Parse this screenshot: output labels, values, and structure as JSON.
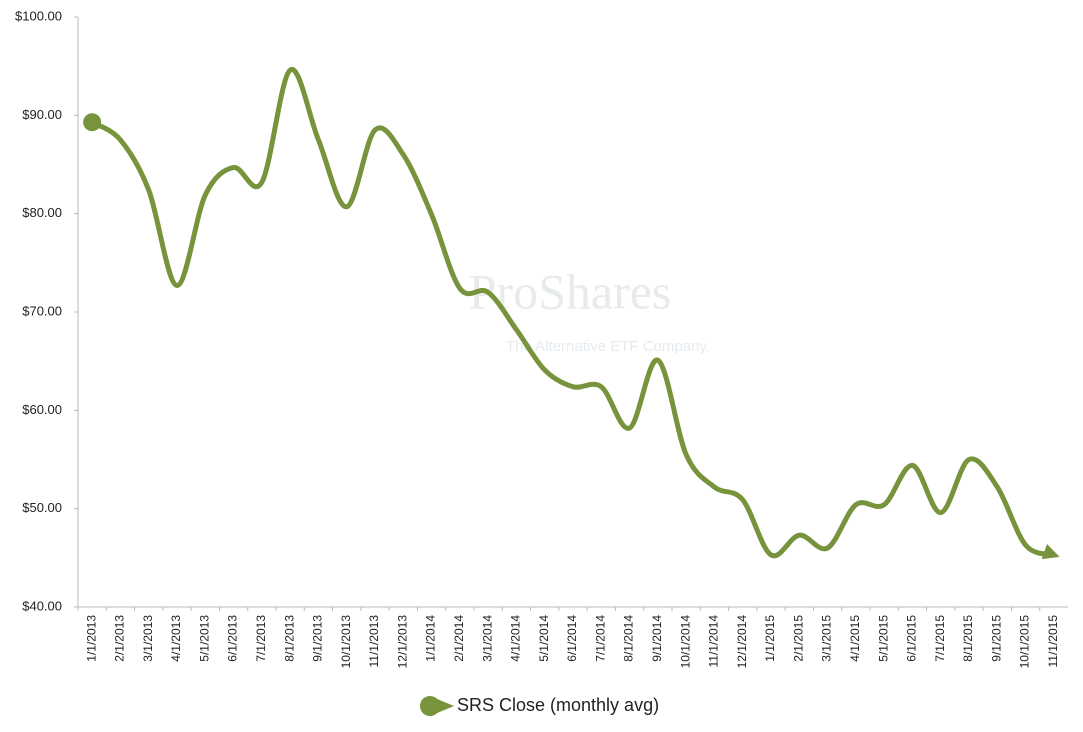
{
  "chart_data": {
    "type": "line",
    "watermark": {
      "brand": "ProShares",
      "tagline": "The Alternative ETF Company."
    },
    "categories": [
      "1/1/2013",
      "2/1/2013",
      "3/1/2013",
      "4/1/2013",
      "5/1/2013",
      "6/1/2013",
      "7/1/2013",
      "8/1/2013",
      "9/1/2013",
      "10/1/2013",
      "11/1/2013",
      "12/1/2013",
      "1/1/2014",
      "2/1/2014",
      "3/1/2014",
      "4/1/2014",
      "5/1/2014",
      "6/1/2014",
      "7/1/2014",
      "8/1/2014",
      "9/1/2014",
      "10/1/2014",
      "11/1/2014",
      "12/1/2014",
      "1/1/2015",
      "2/1/2015",
      "3/1/2015",
      "4/1/2015",
      "5/1/2015",
      "6/1/2015",
      "7/1/2015",
      "8/1/2015",
      "9/1/2015",
      "10/1/2015",
      "11/1/2015"
    ],
    "series": [
      {
        "name": "SRS Close (monthly avg)",
        "color": "#77933c",
        "values": [
          89.3,
          87.5,
          82.4,
          72.7,
          81.9,
          84.7,
          83.2,
          94.6,
          87.5,
          80.7,
          88.5,
          86.0,
          79.9,
          72.4,
          72.0,
          68.2,
          64.1,
          62.4,
          62.4,
          58.2,
          65.1,
          55.5,
          52.2,
          50.9,
          45.3,
          47.3,
          46.0,
          50.4,
          50.4,
          54.4,
          49.6,
          55.0,
          52.2,
          46.3,
          45.3
        ]
      }
    ],
    "ylim": [
      40,
      100
    ],
    "yticks": [
      {
        "value": 40,
        "label": "$40.00"
      },
      {
        "value": 50,
        "label": "$50.00"
      },
      {
        "value": 60,
        "label": "$60.00"
      },
      {
        "value": 70,
        "label": "$70.00"
      },
      {
        "value": 80,
        "label": "$80.00"
      },
      {
        "value": 90,
        "label": "$90.00"
      },
      {
        "value": 100,
        "label": "$100.00"
      }
    ],
    "grid": false,
    "legend": "bottom"
  }
}
